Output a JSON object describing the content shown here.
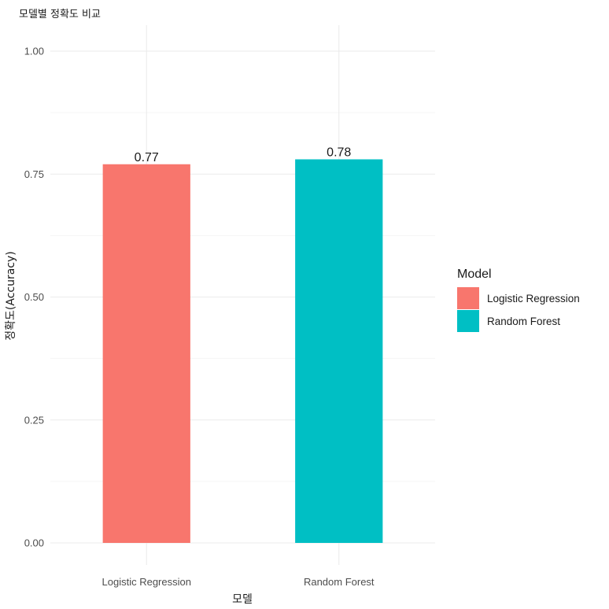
{
  "chart_data": {
    "type": "bar",
    "title": "모델별 정확도 비교",
    "xlabel": "모델",
    "ylabel": "정확도(Accuracy)",
    "categories": [
      "Logistic Regression",
      "Random Forest"
    ],
    "values": [
      0.77,
      0.78
    ],
    "data_labels": [
      "0.77",
      "0.78"
    ],
    "colors": [
      "#F8766D",
      "#00BFC4"
    ],
    "ylim": [
      0,
      1.0
    ],
    "yticks": [
      0.0,
      0.25,
      0.5,
      0.75,
      1.0
    ],
    "ytick_labels": [
      "0.00",
      "0.25",
      "0.50",
      "0.75",
      "1.00"
    ],
    "grid": true,
    "legend": {
      "title": "Model",
      "position": "right",
      "entries": [
        "Logistic Regression",
        "Random Forest"
      ]
    }
  }
}
